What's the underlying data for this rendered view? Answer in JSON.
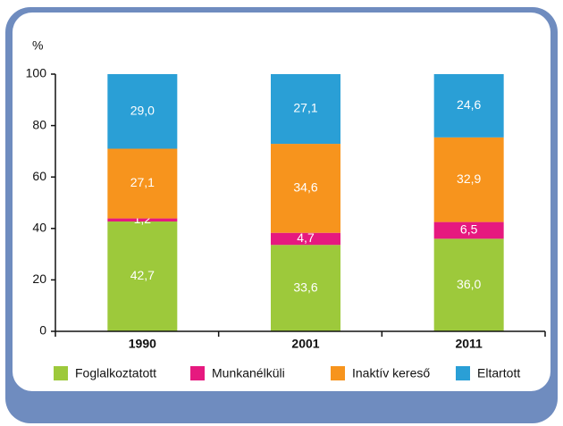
{
  "chart_data": {
    "type": "stacked_bar",
    "y_axis_label": "%",
    "categories": [
      "1990",
      "2001",
      "2011"
    ],
    "series": [
      {
        "name": "Foglalkoztatott",
        "color": "#9dc93b",
        "values": [
          42.7,
          33.6,
          36.0
        ],
        "value_labels": [
          "42,7",
          "33,6",
          "36,0"
        ]
      },
      {
        "name": "Munkanélküli",
        "color": "#e6197f",
        "values": [
          1.2,
          4.7,
          6.5
        ],
        "value_labels": [
          "1,2",
          "4,7",
          "6,5"
        ]
      },
      {
        "name": "Inaktív kereső",
        "color": "#f7941d",
        "values": [
          27.1,
          34.6,
          32.9
        ],
        "value_labels": [
          "27,1",
          "34,6",
          "32,9"
        ]
      },
      {
        "name": "Eltartott",
        "color": "#2a9fd6",
        "values": [
          29.0,
          27.1,
          24.6
        ],
        "value_labels": [
          "29,0",
          "27,1",
          "24,6"
        ]
      }
    ],
    "ylim": [
      0,
      100
    ],
    "yticks": [
      0,
      20,
      40,
      60,
      80,
      100
    ],
    "grid": false,
    "legend": "bottom"
  }
}
